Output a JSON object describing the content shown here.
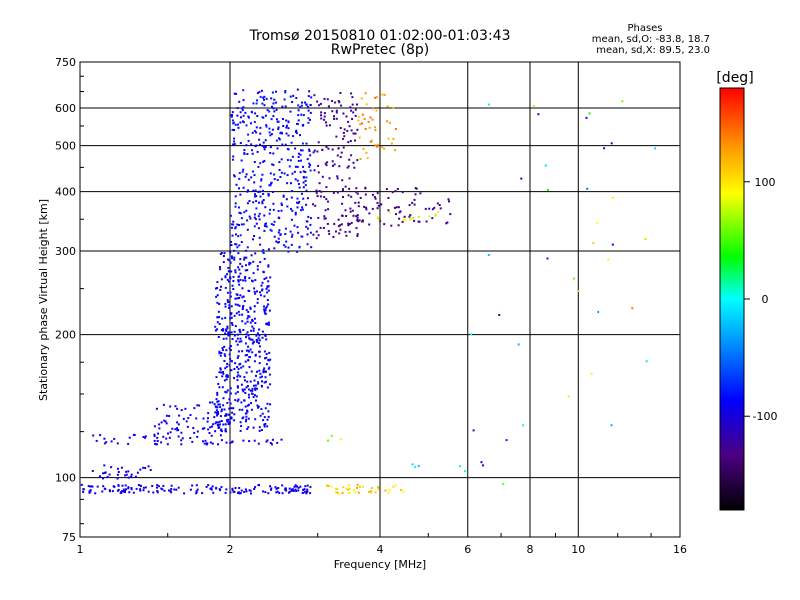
{
  "chart_data": {
    "type": "scatter",
    "title": "Tromsø 20150810 01:02:00-01:03:43",
    "subtitle": "RwPretec (8p)",
    "xlabel": "Frequency [MHz]",
    "ylabel": "Stationary phase Virtual Height [km]",
    "x_scale": "log",
    "y_scale": "log",
    "xlim": [
      1,
      16
    ],
    "ylim": [
      75,
      750
    ],
    "x_ticks": [
      1,
      2,
      4,
      6,
      8,
      10,
      16
    ],
    "x_tick_labels": [
      "1",
      "2",
      "4",
      "6",
      "8",
      "10",
      "16"
    ],
    "y_ticks": [
      75,
      100,
      200,
      300,
      400,
      500,
      600,
      750
    ],
    "y_tick_labels": [
      "75",
      "100",
      "200",
      "300",
      "400",
      "500",
      "600",
      "750"
    ],
    "grid": true,
    "stats": {
      "heading": "Phases",
      "line_o": "mean, sd,O: -83.8, 18.7",
      "line_x": "mean, sd,X: 89.5, 23.0"
    },
    "colorbar": {
      "label": "[deg]",
      "range": [
        -180,
        180
      ],
      "ticks": [
        100,
        0,
        -100
      ],
      "tick_labels": [
        "100",
        "0",
        "-100"
      ]
    },
    "clusters": [
      {
        "f": [
          1.0,
          2.9
        ],
        "h": [
          93,
          97
        ],
        "phase": [
          -100,
          -90
        ],
        "density": 5
      },
      {
        "f": [
          3.1,
          4.6
        ],
        "h": [
          93,
          97
        ],
        "phase": [
          90,
          130
        ],
        "density": 3
      },
      {
        "f": [
          1.05,
          1.4
        ],
        "h": [
          100,
          107
        ],
        "phase": [
          -100,
          -85
        ],
        "density": 2
      },
      {
        "f": [
          1.05,
          1.45
        ],
        "h": [
          118,
          124
        ],
        "phase": [
          -100,
          -85
        ],
        "density": 1.5
      },
      {
        "f": [
          1.4,
          2.0
        ],
        "h": [
          118,
          145
        ],
        "phase": [
          -100,
          -85
        ],
        "density": 2
      },
      {
        "f": [
          2.0,
          2.6
        ],
        "h": [
          117,
          121
        ],
        "phase": [
          -100,
          -90
        ],
        "density": 2
      },
      {
        "f": [
          1.85,
          2.4
        ],
        "h": [
          125,
          300
        ],
        "phase": [
          -100,
          -80
        ],
        "density": 3
      },
      {
        "f": [
          2.0,
          2.9
        ],
        "h": [
          300,
          660
        ],
        "phase": [
          -100,
          -75
        ],
        "density": 2
      },
      {
        "f": [
          2.9,
          3.6
        ],
        "h": [
          320,
          650
        ],
        "phase": [
          -135,
          -115
        ],
        "density": 1.4
      },
      {
        "f": [
          3.3,
          5.6
        ],
        "h": [
          340,
          410
        ],
        "phase": [
          -140,
          -120
        ],
        "density": 1.1
      },
      {
        "f": [
          3.6,
          5.3
        ],
        "h": [
          350,
          365
        ],
        "phase": [
          70,
          100
        ],
        "density": 1.1
      },
      {
        "f": [
          3.6,
          4.3
        ],
        "h": [
          470,
          650
        ],
        "phase": [
          110,
          150
        ],
        "density": 1
      },
      {
        "f": [
          4.5,
          6.0
        ],
        "h": [
          103,
          108
        ],
        "phase": [
          -30,
          10
        ],
        "density": 0.5
      },
      {
        "f": [
          3.0,
          3.5
        ],
        "h": [
          117,
          125
        ],
        "phase": [
          50,
          120
        ],
        "density": 0.4
      },
      {
        "f": [
          6.0,
          14.5
        ],
        "h": [
          95,
          650
        ],
        "phase": [
          -140,
          140
        ],
        "density": 0.03
      }
    ]
  }
}
